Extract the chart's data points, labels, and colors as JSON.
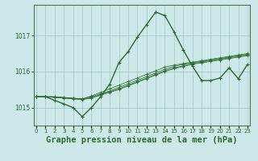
{
  "background_color": "#cce8e8",
  "grid_color": "#aacccc",
  "line_color": "#2d6a2d",
  "title": "Graphe pression niveau de la mer (hPa)",
  "xlabel_ticks": [
    "0",
    "1",
    "2",
    "3",
    "4",
    "5",
    "6",
    "7",
    "8",
    "9",
    "10",
    "11",
    "12",
    "13",
    "14",
    "15",
    "16",
    "17",
    "18",
    "19",
    "20",
    "21",
    "22",
    "23"
  ],
  "yticks": [
    1015,
    1016,
    1017
  ],
  "ylim": [
    1014.5,
    1017.85
  ],
  "xlim": [
    -0.3,
    23.3
  ],
  "flat_series": [
    [
      1015.3,
      1015.3,
      1015.3,
      1015.28,
      1015.26,
      1015.24,
      1015.32,
      1015.42,
      1015.52,
      1015.62,
      1015.72,
      1015.82,
      1015.92,
      1016.02,
      1016.12,
      1016.18,
      1016.22,
      1016.26,
      1016.3,
      1016.34,
      1016.38,
      1016.42,
      1016.46,
      1016.5
    ],
    [
      1015.3,
      1015.3,
      1015.3,
      1015.28,
      1015.26,
      1015.24,
      1015.3,
      1015.38,
      1015.46,
      1015.56,
      1015.66,
      1015.76,
      1015.86,
      1015.96,
      1016.06,
      1016.14,
      1016.2,
      1016.24,
      1016.28,
      1016.32,
      1016.36,
      1016.4,
      1016.44,
      1016.48
    ],
    [
      1015.3,
      1015.3,
      1015.29,
      1015.27,
      1015.25,
      1015.23,
      1015.28,
      1015.36,
      1015.44,
      1015.52,
      1015.62,
      1015.72,
      1015.82,
      1015.92,
      1016.02,
      1016.1,
      1016.16,
      1016.22,
      1016.26,
      1016.3,
      1016.34,
      1016.38,
      1016.42,
      1016.46
    ],
    [
      1015.3,
      1015.3,
      1015.28,
      1015.26,
      1015.24,
      1015.22,
      1015.26,
      1015.34,
      1015.42,
      1015.5,
      1015.6,
      1015.7,
      1015.8,
      1015.9,
      1016.0,
      1016.08,
      1016.14,
      1016.2,
      1016.24,
      1016.28,
      1016.32,
      1016.36,
      1016.4,
      1016.44
    ]
  ],
  "main_series": [
    1015.3,
    1015.3,
    1015.2,
    1015.1,
    1015.0,
    1014.75,
    1015.0,
    1015.3,
    1015.65,
    1016.25,
    1016.55,
    1016.95,
    1017.3,
    1017.65,
    1017.55,
    1017.1,
    1016.6,
    1016.15,
    1015.75,
    1015.75,
    1015.82,
    1016.1,
    1015.8,
    1016.2
  ],
  "title_fontsize": 7.5,
  "tick_fontsize": 5.5
}
